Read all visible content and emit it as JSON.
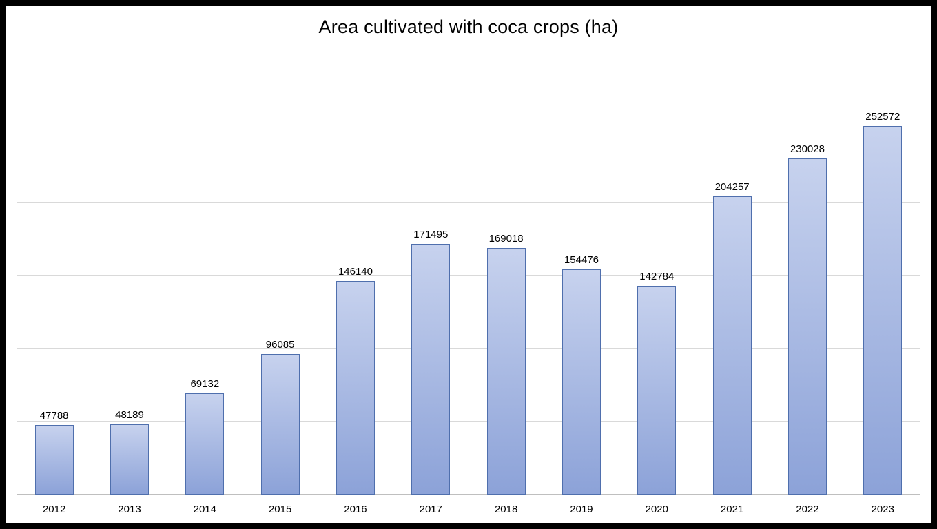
{
  "chart_data": {
    "type": "bar",
    "title": "Area cultivated with coca crops (ha)",
    "categories": [
      "2012",
      "2013",
      "2014",
      "2015",
      "2016",
      "2017",
      "2018",
      "2019",
      "2020",
      "2021",
      "2022",
      "2023"
    ],
    "values": [
      47788,
      48189,
      69132,
      96085,
      146140,
      171495,
      169018,
      154476,
      142784,
      204257,
      230028,
      252572
    ],
    "xlabel": "",
    "ylabel": "",
    "ylim": [
      0,
      300000
    ],
    "grid_step": 50000,
    "grid": true,
    "legend": false,
    "data_labels": true,
    "colors": {
      "bar_fill_top": "#c7d2ee",
      "bar_fill_bottom": "#8ca2d8",
      "bar_border": "#4f6fad",
      "gridline": "#d9d9d9",
      "axis_line": "#bfbfbf",
      "text": "#000000",
      "background": "#ffffff",
      "frame": "#000000"
    }
  }
}
